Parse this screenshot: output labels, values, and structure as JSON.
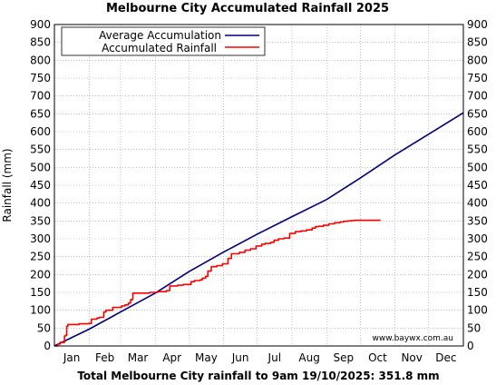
{
  "chart_data": {
    "type": "line",
    "title": "Melbourne City Accumulated Rainfall 2025",
    "ylabel": "Rainfall (mm)",
    "xlabel": "",
    "footer": "Total Melbourne City rainfall to 9am 19/10/2025: 351.8 mm",
    "credit": "www.baywx.com.au",
    "ylim": [
      0,
      900
    ],
    "xlim": [
      0,
      365
    ],
    "yticks": [
      0,
      50,
      100,
      150,
      200,
      250,
      300,
      350,
      400,
      450,
      500,
      550,
      600,
      650,
      700,
      750,
      800,
      850,
      900
    ],
    "ytick_labels": [
      "0",
      "50",
      "100",
      "150",
      "200",
      "250",
      "300",
      "350",
      "400",
      "450",
      "500",
      "550",
      "600",
      "650",
      "700",
      "750",
      "800",
      "850",
      "900"
    ],
    "month_labels": [
      "Jan",
      "Feb",
      "Mar",
      "Apr",
      "May",
      "Jun",
      "Jul",
      "Aug",
      "Sep",
      "Oct",
      "Nov",
      "Dec"
    ],
    "grid": true,
    "legend_position": "top-left",
    "series": [
      {
        "name": "Average Accumulation",
        "color": "#000080",
        "x": [
          0,
          31,
          59,
          90,
          120,
          151,
          181,
          212,
          243,
          273,
          304,
          334,
          365
        ],
        "y": [
          0,
          47,
          95,
          148,
          208,
          263,
          313,
          362,
          410,
          470,
          535,
          593,
          653
        ]
      },
      {
        "name": "Accumulated Rainfall",
        "color": "#ff0000",
        "step": true,
        "x": [
          0,
          3,
          5,
          9,
          10,
          11,
          12,
          22,
          25,
          30,
          33,
          38,
          40,
          44,
          46,
          52,
          55,
          60,
          63,
          66,
          68,
          70,
          85,
          92,
          100,
          103,
          110,
          115,
          122,
          125,
          130,
          132,
          135,
          137,
          140,
          145,
          150,
          155,
          158,
          165,
          170,
          175,
          180,
          185,
          188,
          193,
          196,
          200,
          205,
          210,
          215,
          220,
          225,
          230,
          233,
          236,
          240,
          245,
          250,
          255,
          258,
          262,
          265,
          268,
          272,
          275,
          278,
          280,
          285,
          291
        ],
        "y": [
          0,
          5,
          10,
          28,
          30,
          55,
          60,
          62,
          62,
          63,
          75,
          78,
          80,
          95,
          100,
          108,
          108,
          112,
          115,
          120,
          130,
          148,
          150,
          152,
          155,
          168,
          170,
          172,
          180,
          183,
          185,
          190,
          195,
          210,
          222,
          225,
          230,
          245,
          258,
          262,
          268,
          272,
          280,
          285,
          287,
          290,
          296,
          300,
          302,
          315,
          320,
          322,
          325,
          330,
          334,
          335,
          338,
          342,
          345,
          347,
          349,
          350,
          351,
          351.8,
          351.8,
          351.8,
          351.8,
          351.8,
          351.8,
          351.8
        ]
      }
    ]
  }
}
